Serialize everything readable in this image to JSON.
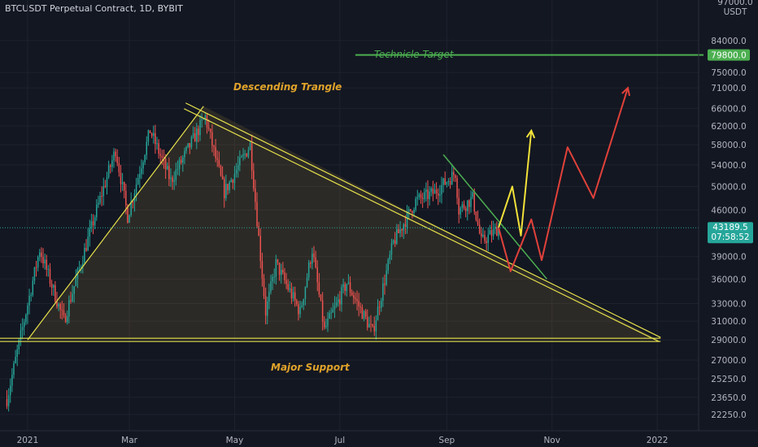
{
  "header": {
    "symbol_title": "BTCUSDT Perpetual Contract, 1D, BYBIT"
  },
  "colors": {
    "background": "#131722",
    "up_candle": "#26a69a",
    "down_candle": "#ef5350",
    "triangle": "#e6e14c",
    "target_line": "#4caf50",
    "yellow_path": "#f2e13a",
    "red_path": "#e0413a",
    "annotation": "#e0a32a"
  },
  "chart_data": {
    "type": "candlestick",
    "title": "BTCUSDT Perpetual Contract, 1D, BYBIT",
    "y_axis": {
      "unit": "USDT",
      "top_label": "97000.0",
      "ticks": [
        "84000.0",
        "75000.0",
        "71000.0",
        "66000.0",
        "62000.0",
        "58000.0",
        "54000.0",
        "50000.0",
        "46000.0",
        "39000.0",
        "36000.0",
        "33000.0",
        "31000.0",
        "29000.0",
        "27000.0",
        "25250.0",
        "23650.0",
        "22250.0"
      ],
      "scale": "log",
      "range": [
        21000,
        97000
      ]
    },
    "x_axis": {
      "ticks": [
        "2021",
        "Mar",
        "May",
        "Jul",
        "Sep",
        "Nov",
        "2022"
      ],
      "range": [
        "2020-12-16",
        "2022-01-25"
      ]
    },
    "current_price": {
      "value": "43189.5",
      "countdown": "07:58:52"
    },
    "target_price": {
      "value": "79800.0"
    },
    "annotations": {
      "descending_triangle": "Descending Trangle",
      "major_support": "Major Support",
      "technical_target": "Technicle Target"
    },
    "anchors": [
      [
        "2020-12-20",
        23500
      ],
      [
        "2021-01-08",
        40000
      ],
      [
        "2021-01-22",
        31000
      ],
      [
        "2021-02-10",
        46000
      ],
      [
        "2021-02-21",
        57000
      ],
      [
        "2021-02-28",
        45000
      ],
      [
        "2021-03-13",
        61000
      ],
      [
        "2021-03-25",
        51000
      ],
      [
        "2021-04-14",
        64000
      ],
      [
        "2021-04-25",
        49000
      ],
      [
        "2021-05-10",
        58000
      ],
      [
        "2021-05-19",
        32000
      ],
      [
        "2021-05-25",
        38000
      ],
      [
        "2021-06-08",
        32000
      ],
      [
        "2021-06-15",
        40000
      ],
      [
        "2021-06-22",
        30000
      ],
      [
        "2021-07-05",
        35500
      ],
      [
        "2021-07-20",
        29800
      ],
      [
        "2021-08-01",
        41000
      ],
      [
        "2021-08-14",
        47500
      ],
      [
        "2021-08-25",
        49000
      ],
      [
        "2021-09-06",
        52500
      ],
      [
        "2021-09-08",
        46000
      ],
      [
        "2021-09-16",
        48000
      ],
      [
        "2021-09-21",
        41000
      ],
      [
        "2021-10-01",
        43200
      ]
    ]
  },
  "drawings": {
    "triangle_apex": [
      "2022-01-02",
      29000
    ],
    "triangle_top": [
      "2021-04-13",
      66500
    ],
    "triangle_support_left": [
      "2020-12-10",
      29000
    ],
    "triangle_ascending_start": [
      "2021-01-01",
      29000
    ],
    "target_line_start": [
      "2021-07-10",
      79800
    ],
    "yellow_path": [
      [
        "2021-10-01",
        43200
      ],
      [
        "2021-10-09",
        50000
      ],
      [
        "2021-10-14",
        42000
      ],
      [
        "2021-10-20",
        61000
      ]
    ],
    "red_path": [
      [
        "2021-10-01",
        43200
      ],
      [
        "2021-10-08",
        37000
      ],
      [
        "2021-10-20",
        44500
      ],
      [
        "2021-10-26",
        38500
      ],
      [
        "2021-11-10",
        57500
      ],
      [
        "2021-11-25",
        48000
      ],
      [
        "2021-12-15",
        71000
      ]
    ],
    "green_line": [
      [
        "2021-08-30",
        56000
      ],
      [
        "2021-10-29",
        36000
      ]
    ]
  }
}
